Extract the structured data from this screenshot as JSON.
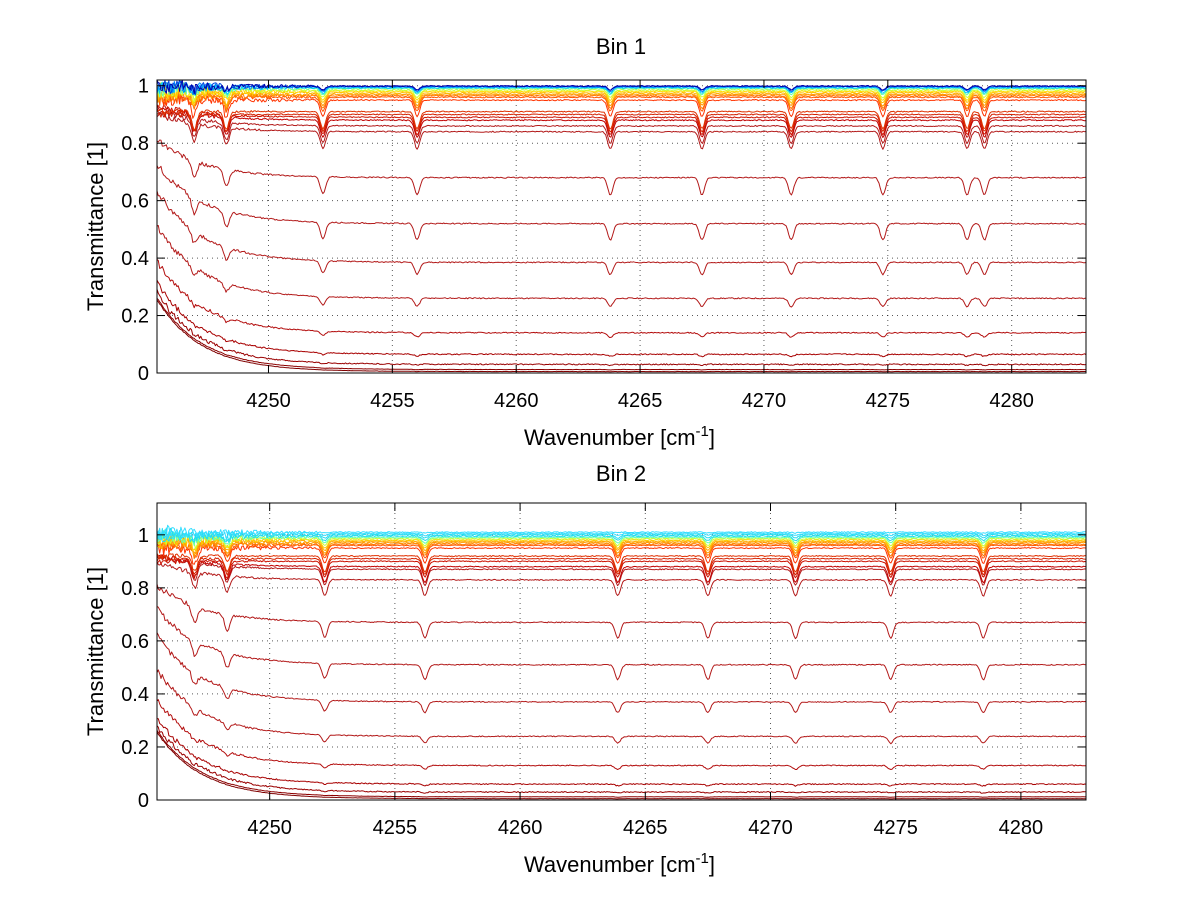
{
  "chart_data": [
    {
      "type": "line",
      "title": "Bin 1",
      "xlabel": "Wavenumber [cm",
      "xlabel_sup": "-1",
      "xlabel_end": "]",
      "ylabel": "Transmittance [1]",
      "xlim": [
        4245.5,
        4283
      ],
      "ylim": [
        0,
        1.02
      ],
      "xticks": [
        4250,
        4255,
        4260,
        4265,
        4270,
        4275,
        4280
      ],
      "yticks": [
        0,
        0.2,
        0.4,
        0.6,
        0.8,
        1
      ],
      "ytick_labels": [
        "0",
        "0.2",
        "0.4",
        "0.6",
        "0.8",
        "1"
      ],
      "grid": true,
      "absorption_lines_cm1": [
        4247.0,
        4248.3,
        4252.2,
        4256.0,
        4263.8,
        4267.5,
        4271.1,
        4274.8,
        4278.2,
        4278.9
      ],
      "plateau_levels": [
        0.005,
        0.012,
        0.03,
        0.065,
        0.14,
        0.26,
        0.385,
        0.52,
        0.68,
        0.84,
        0.86,
        0.88,
        0.89,
        0.9,
        0.91,
        0.95,
        0.96,
        0.965,
        0.97,
        0.975,
        0.98,
        0.985,
        0.99,
        0.993,
        0.996,
        0.998,
        0.999
      ],
      "series_colors": [
        "#7f0000",
        "#8c0000",
        "#9a0000",
        "#a80000",
        "#b30d0d",
        "#b31a1a",
        "#b31a1a",
        "#b31a1a",
        "#b31a1a",
        "#b31a1a",
        "#b31a1a",
        "#c00000",
        "#cc1100",
        "#d42000",
        "#e03000",
        "#ff3300",
        "#ff5500",
        "#ff7700",
        "#ff9900",
        "#ffbb00",
        "#ffdd00",
        "#ccff33",
        "#66ffaa",
        "#00ccff",
        "#0088ff",
        "#0044dd",
        "#0000aa"
      ]
    },
    {
      "type": "line",
      "title": "Bin 2",
      "xlabel": "Wavenumber [cm",
      "xlabel_sup": "-1",
      "xlabel_end": "]",
      "ylabel": "Transmittance [1]",
      "xlim": [
        4245.5,
        4282.6
      ],
      "ylim": [
        0,
        1.12
      ],
      "xticks": [
        4250,
        4255,
        4260,
        4265,
        4270,
        4275,
        4280
      ],
      "yticks": [
        0,
        0.2,
        0.4,
        0.6,
        0.8,
        1
      ],
      "ytick_labels": [
        "0",
        "0.2",
        "0.4",
        "0.6",
        "0.8",
        "1"
      ],
      "grid": true,
      "absorption_lines_cm1": [
        4247.0,
        4248.3,
        4252.2,
        4256.2,
        4263.9,
        4267.5,
        4271.0,
        4274.8,
        4278.5
      ],
      "plateau_levels": [
        0.005,
        0.012,
        0.03,
        0.06,
        0.13,
        0.24,
        0.37,
        0.51,
        0.67,
        0.83,
        0.87,
        0.88,
        0.9,
        0.91,
        0.92,
        0.95,
        0.96,
        0.965,
        0.97,
        0.975,
        0.98,
        0.985,
        0.99,
        0.995,
        1.0,
        1.005,
        1.01
      ],
      "series_colors": [
        "#7f0000",
        "#8c0000",
        "#9a0000",
        "#a80000",
        "#b30d0d",
        "#b31a1a",
        "#b31a1a",
        "#b31a1a",
        "#b31a1a",
        "#b31a1a",
        "#b31a1a",
        "#c00000",
        "#cc1100",
        "#d42000",
        "#e03000",
        "#ff3300",
        "#ff5500",
        "#ff7700",
        "#ff9900",
        "#ffaa00",
        "#ffcc00",
        "#ccff33",
        "#66ffaa",
        "#22ddee",
        "#22ddee",
        "#33ddff",
        "#33ddff"
      ]
    }
  ]
}
